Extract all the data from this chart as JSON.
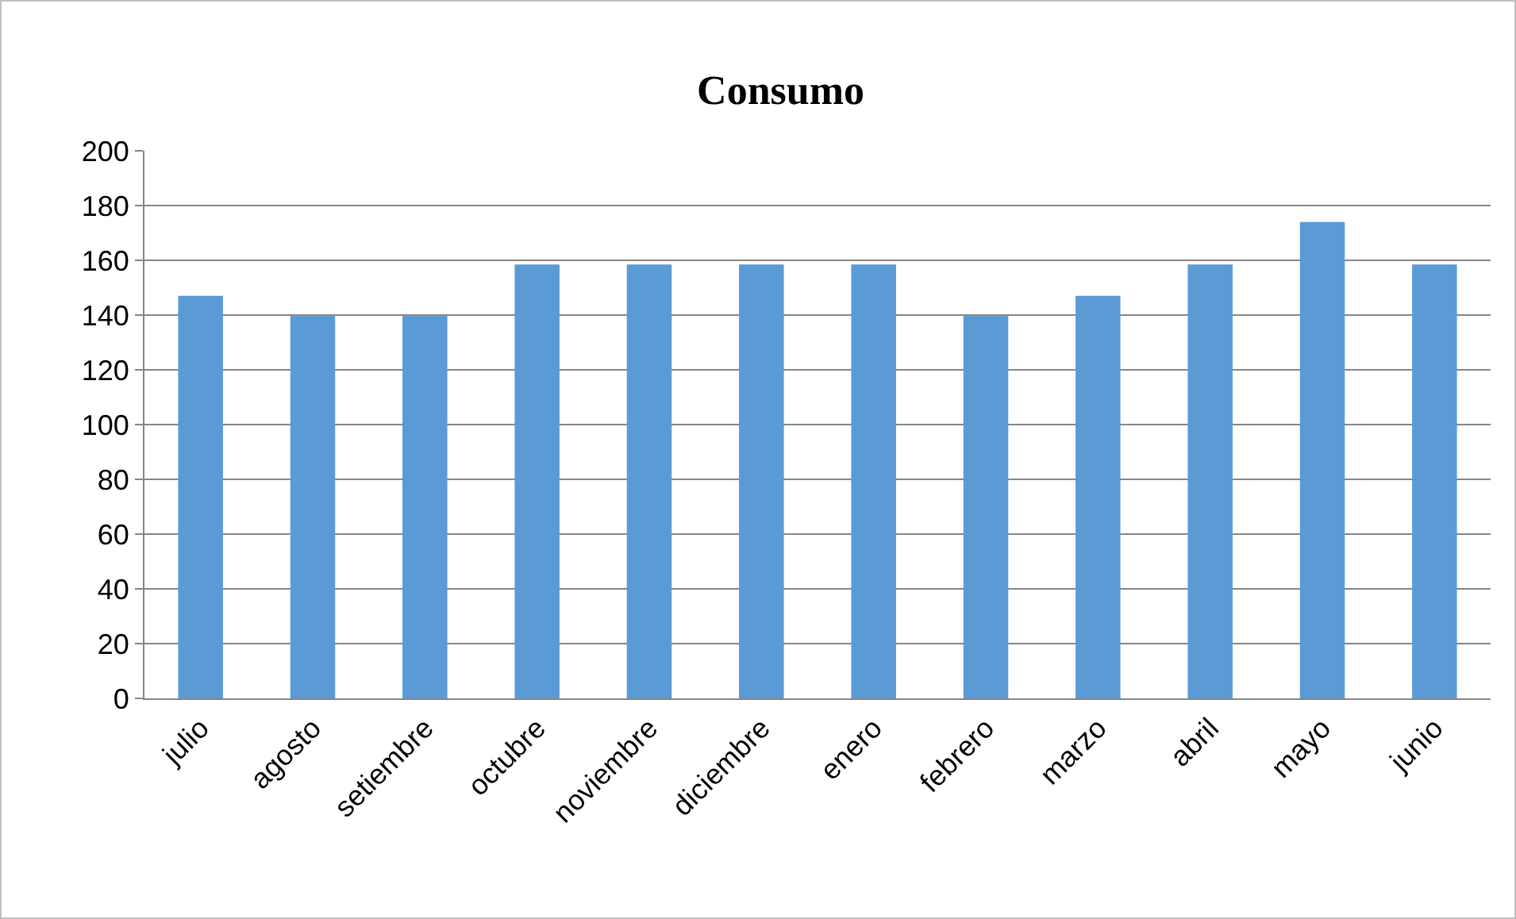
{
  "chart_data": {
    "type": "bar",
    "title": "Consumo",
    "categories": [
      "julio",
      "agosto",
      "setiembre",
      "octubre",
      "noviembre",
      "diciembre",
      "enero",
      "febrero",
      "marzo",
      "abril",
      "mayo",
      "junio"
    ],
    "values": [
      147,
      140,
      140,
      158.5,
      158.5,
      158.5,
      158.5,
      140,
      147,
      158.5,
      174,
      158.5
    ],
    "color": "#5b9bd5",
    "ylim": [
      0,
      200
    ],
    "yticks": [
      0,
      20,
      40,
      60,
      80,
      100,
      120,
      140,
      160,
      180,
      200
    ],
    "grid": "y"
  }
}
